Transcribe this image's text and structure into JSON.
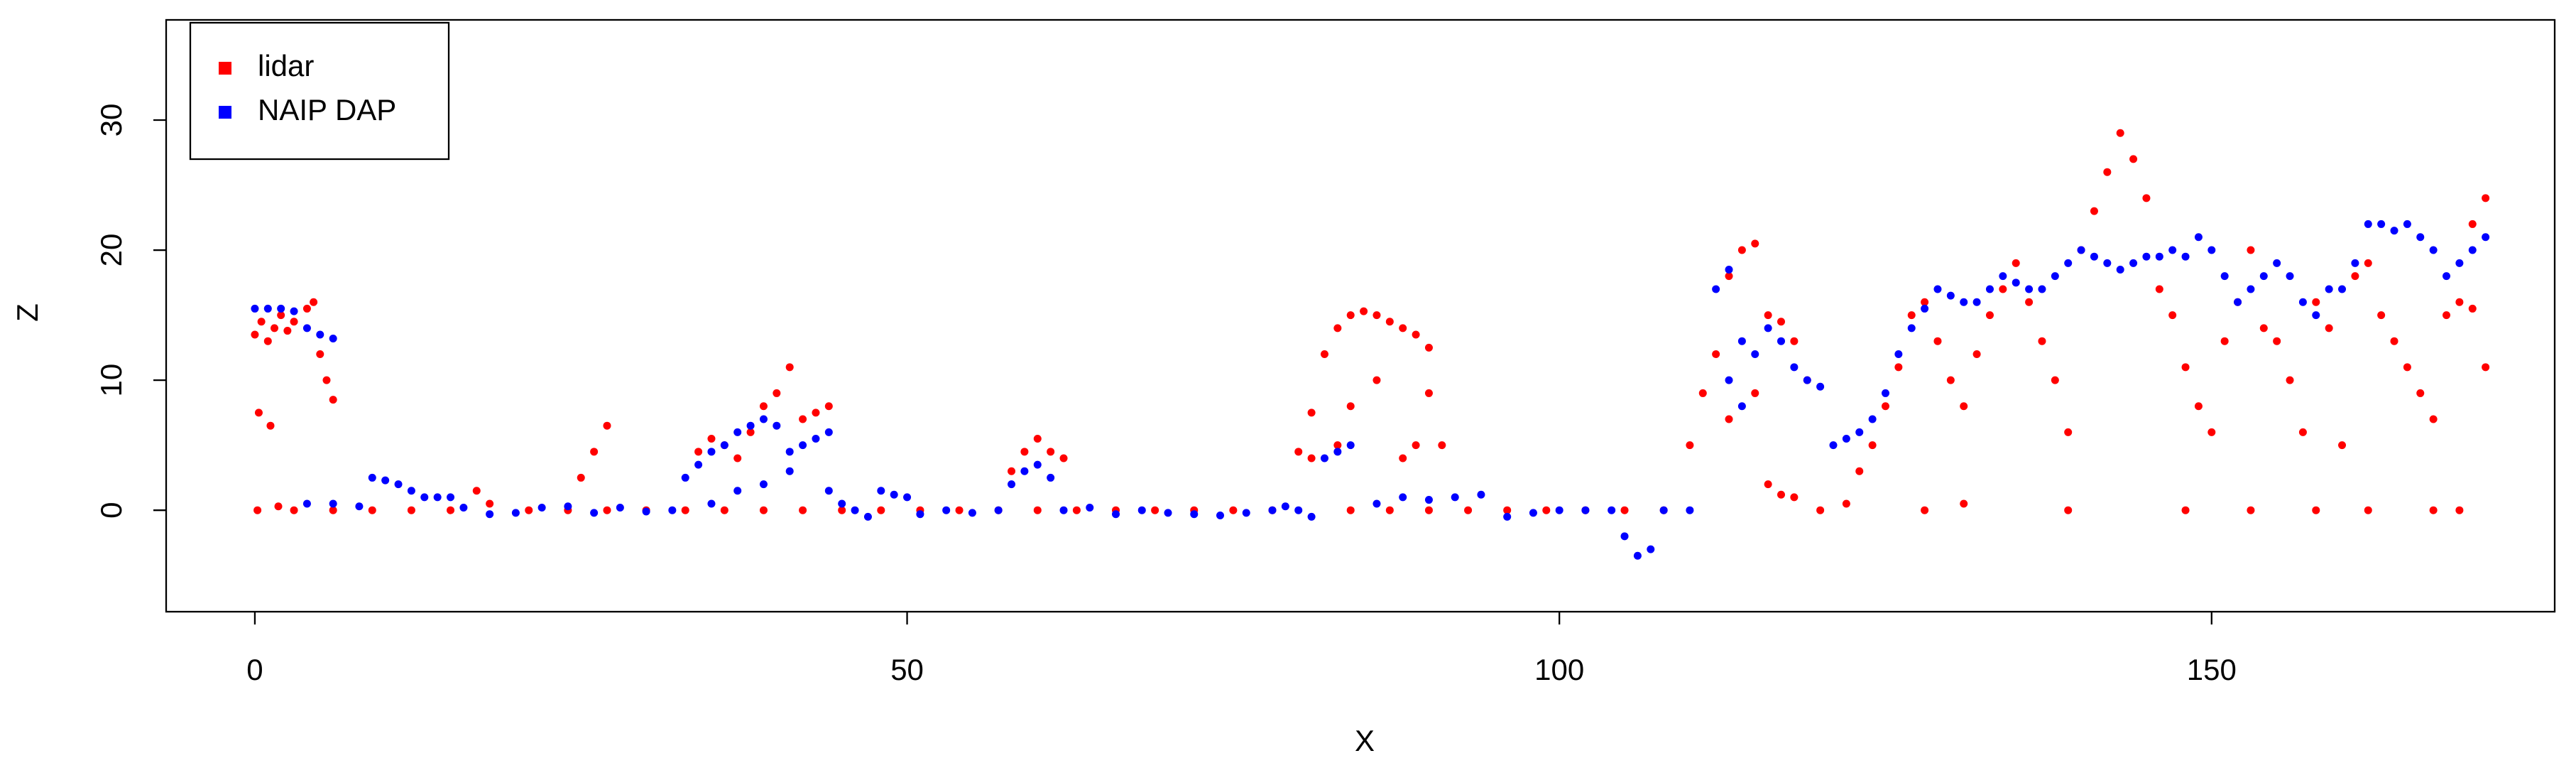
{
  "chart_data": {
    "type": "scatter",
    "x_label": "X",
    "y_label": "Z",
    "xlim": [
      -6.8,
      176.3
    ],
    "ylim": [
      -7.8,
      37.7
    ],
    "xticks": [
      0,
      50,
      100,
      150
    ],
    "yticks": [
      0,
      10,
      20,
      30
    ],
    "legend": "top-left",
    "series": [
      {
        "name": "lidar",
        "color": "#ff0000",
        "x": [
          0,
          0.5,
          1,
          1.5,
          2,
          2.5,
          3,
          4,
          4.5,
          5,
          5.5,
          6,
          0.3,
          1.2,
          0.2,
          1.8,
          3,
          6,
          9,
          12,
          15,
          18,
          17,
          21,
          24,
          26,
          27,
          25,
          27,
          30,
          33,
          34,
          35,
          36,
          37,
          38,
          39,
          40,
          41,
          42,
          43,
          44,
          36,
          39,
          42,
          45,
          48,
          51,
          54,
          57,
          58,
          59,
          60,
          61,
          62,
          60,
          63,
          66,
          69,
          72,
          75,
          78,
          80,
          81,
          82,
          83,
          84,
          85,
          86,
          87,
          88,
          89,
          90,
          81,
          83,
          84,
          86,
          88,
          89,
          90,
          91,
          84,
          87,
          90,
          93,
          96,
          99,
          102,
          105,
          108,
          110,
          111,
          112,
          113,
          114,
          115,
          113,
          115,
          116,
          117,
          118,
          119,
          116,
          118,
          117,
          120,
          122,
          123,
          124,
          125,
          126,
          127,
          128,
          129,
          130,
          131,
          132,
          133,
          134,
          135,
          136,
          137,
          138,
          139,
          140,
          141,
          142,
          143,
          144,
          145,
          146,
          147,
          148,
          149,
          150,
          151,
          152,
          153,
          154,
          155,
          156,
          157,
          158,
          159,
          160,
          161,
          162,
          163,
          164,
          165,
          166,
          167,
          168,
          169,
          170,
          171,
          170,
          171,
          128,
          131,
          139,
          148,
          153,
          158,
          162,
          167,
          169
        ],
        "values": [
          13.5,
          14.5,
          13,
          14,
          15,
          13.8,
          14.5,
          15.5,
          16,
          12,
          10,
          8.5,
          7.5,
          6.5,
          0,
          0.3,
          0,
          0,
          0,
          0,
          0,
          0.5,
          1.5,
          0,
          0,
          4.5,
          6.5,
          2.5,
          0,
          0,
          0,
          4.5,
          5.5,
          5,
          4,
          6,
          8,
          9,
          11,
          7,
          7.5,
          8,
          0,
          0,
          0,
          0,
          0,
          0,
          0,
          0,
          3,
          4.5,
          5.5,
          4.5,
          4,
          0,
          0,
          0,
          0,
          0,
          0,
          0,
          4.5,
          7.5,
          12,
          14,
          15,
          15.3,
          15,
          14.5,
          14,
          13.5,
          12.5,
          4,
          5,
          8,
          10,
          4,
          5,
          9,
          5,
          0,
          0,
          0,
          0,
          0,
          0,
          0,
          0,
          0,
          5,
          9,
          12,
          18,
          20,
          20.5,
          7,
          9,
          15,
          14.5,
          13,
          10,
          2,
          1,
          1.2,
          0,
          0.5,
          3,
          5,
          8,
          11,
          15,
          16,
          13,
          10,
          8,
          12,
          15,
          17,
          19,
          16,
          13,
          10,
          6,
          20,
          23,
          26,
          29,
          27,
          24,
          17,
          15,
          11,
          8,
          6,
          13,
          16,
          20,
          14,
          13,
          10,
          6,
          16,
          14,
          5,
          18,
          19,
          15,
          13,
          11,
          9,
          7,
          15,
          16,
          22,
          24,
          15.5,
          11,
          0,
          0.5,
          0,
          0,
          0,
          0,
          0,
          0,
          0
        ]
      },
      {
        "name": "NAIP DAP",
        "color": "#0000ff",
        "x": [
          0,
          1,
          2,
          3,
          4,
          5,
          6,
          4,
          6,
          8,
          9,
          10,
          11,
          12,
          13,
          14,
          15,
          16,
          18,
          20,
          22,
          24,
          26,
          28,
          30,
          32,
          33,
          34,
          35,
          36,
          37,
          38,
          39,
          40,
          41,
          42,
          43,
          44,
          35,
          37,
          39,
          41,
          44,
          45,
          46,
          47,
          48,
          49,
          50,
          51,
          53,
          55,
          57,
          58,
          59,
          60,
          61,
          62,
          64,
          66,
          68,
          70,
          72,
          74,
          76,
          78,
          79,
          80,
          81,
          82,
          83,
          84,
          86,
          88,
          90,
          92,
          94,
          96,
          98,
          100,
          102,
          104,
          105,
          106,
          107,
          108,
          110,
          112,
          113,
          114,
          115,
          116,
          117,
          118,
          119,
          120,
          113,
          114,
          121,
          122,
          123,
          124,
          125,
          126,
          127,
          128,
          129,
          130,
          131,
          132,
          133,
          134,
          135,
          136,
          137,
          138,
          139,
          140,
          141,
          142,
          143,
          144,
          145,
          146,
          147,
          148,
          149,
          150,
          151,
          152,
          153,
          154,
          155,
          156,
          157,
          158,
          159,
          160,
          161,
          162,
          163,
          164,
          165,
          166,
          167,
          168,
          169,
          170,
          171
        ],
        "values": [
          15.5,
          15.5,
          15.5,
          15.3,
          14,
          13.5,
          13.2,
          0.5,
          0.5,
          0.3,
          2.5,
          2.3,
          2,
          1.5,
          1,
          1,
          1,
          0.2,
          -0.3,
          -0.2,
          0.2,
          0.3,
          -0.2,
          0.2,
          -0.1,
          0,
          2.5,
          3.5,
          4.5,
          5,
          6,
          6.5,
          7,
          6.5,
          4.5,
          5,
          5.5,
          6,
          0.5,
          1.5,
          2,
          3,
          1.5,
          0.5,
          0,
          -0.5,
          1.5,
          1.2,
          1,
          -0.3,
          0,
          -0.2,
          0,
          2,
          3,
          3.5,
          2.5,
          0,
          0.2,
          -0.3,
          0,
          -0.2,
          -0.3,
          -0.4,
          -0.2,
          0,
          0.3,
          0,
          -0.5,
          4,
          4.5,
          5,
          0.5,
          1,
          0.8,
          1,
          1.2,
          -0.5,
          -0.2,
          0,
          0,
          0,
          -2,
          -3.5,
          -3,
          0,
          0,
          17,
          18.5,
          13,
          12,
          14,
          13,
          11,
          10,
          9.5,
          10,
          8,
          5,
          5.5,
          6,
          7,
          9,
          12,
          14,
          15.5,
          17,
          16.5,
          16,
          16,
          17,
          18,
          17.5,
          17,
          17,
          18,
          19,
          20,
          19.5,
          19,
          18.5,
          19,
          19.5,
          19.5,
          20,
          19.5,
          21,
          20,
          18,
          16,
          17,
          18,
          19,
          18,
          16,
          15,
          17,
          17,
          19,
          22,
          22,
          21.5,
          22,
          21,
          20,
          18,
          19,
          20,
          21
        ]
      }
    ]
  }
}
